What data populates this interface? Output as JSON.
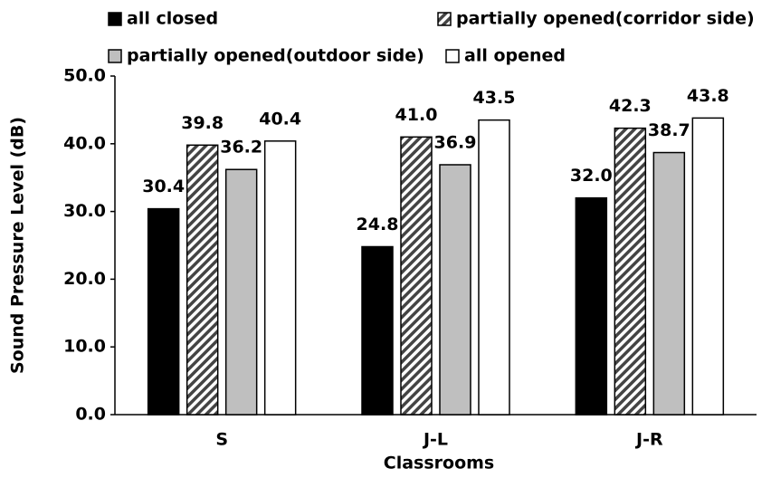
{
  "chart_data": {
    "type": "bar",
    "x_label": "Classrooms",
    "y_label": "Sound Pressure Level (dB)",
    "categories": [
      "S",
      "J-L",
      "J-R"
    ],
    "series": [
      {
        "name": "all closed",
        "color": "#000000",
        "values": [
          30.4,
          24.8,
          32.0
        ],
        "value_labels": [
          "30.4",
          "24.8",
          "32.0"
        ]
      },
      {
        "name": "partially opened(corridor side)",
        "color": "#ffffff",
        "hatch": true,
        "values": [
          39.8,
          41.0,
          42.3
        ],
        "value_labels": [
          "39.8",
          "41.0",
          "42.3"
        ]
      },
      {
        "name": "partially opened(outdoor side)",
        "color": "#bfbfbf",
        "values": [
          36.2,
          36.9,
          38.7
        ],
        "value_labels": [
          "36.2",
          "36.9",
          "38.7"
        ]
      },
      {
        "name": "all opened",
        "color": "#ffffff",
        "values": [
          40.4,
          43.5,
          43.8
        ],
        "value_labels": [
          "40.4",
          "43.5",
          "43.8"
        ]
      }
    ],
    "ylim": [
      0,
      50
    ],
    "yticks": [
      {
        "value": 0,
        "label": "0.0"
      },
      {
        "value": 10,
        "label": "10.0"
      },
      {
        "value": 20,
        "label": "20.0"
      },
      {
        "value": 30,
        "label": "30.0"
      },
      {
        "value": 40,
        "label": "40.0"
      },
      {
        "value": 50,
        "label": "50.0"
      }
    ],
    "grid": false,
    "legend": "top"
  }
}
